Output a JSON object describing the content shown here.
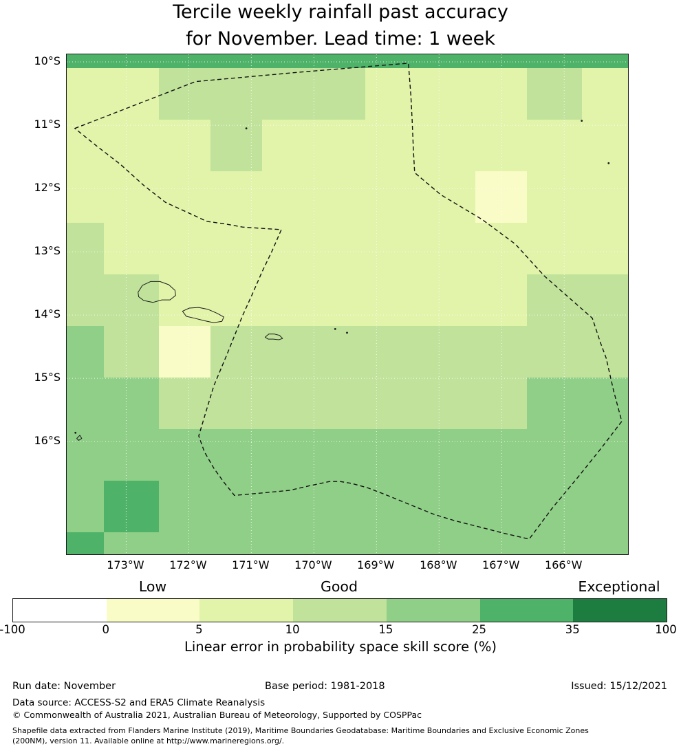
{
  "title": {
    "line1": "Tercile weekly rainfall past accuracy",
    "line2": "for November. Lead time: 1 week"
  },
  "axes": {
    "lat_ticks": [
      {
        "label": "10°S",
        "value": -10
      },
      {
        "label": "11°S",
        "value": -11
      },
      {
        "label": "12°S",
        "value": -12
      },
      {
        "label": "13°S",
        "value": -13
      },
      {
        "label": "14°S",
        "value": -14
      },
      {
        "label": "15°S",
        "value": -15
      },
      {
        "label": "16°S",
        "value": -16
      }
    ],
    "lon_ticks": [
      {
        "label": "173°W",
        "value": -173
      },
      {
        "label": "172°W",
        "value": -172
      },
      {
        "label": "171°W",
        "value": -171
      },
      {
        "label": "170°W",
        "value": -170
      },
      {
        "label": "169°W",
        "value": -169
      },
      {
        "label": "168°W",
        "value": -168
      },
      {
        "label": "167°W",
        "value": -167
      },
      {
        "label": "166°W",
        "value": -166
      }
    ]
  },
  "chart_data": {
    "type": "heatmap",
    "title": "Tercile weekly rainfall past accuracy for November. Lead time: 1 week",
    "value_label": "Linear error in probability space skill score (%)",
    "units": "%",
    "lon_range": [
      -173.95,
      -164.98
    ],
    "lat_range": [
      -9.88,
      -17.78
    ],
    "lon_edges": [
      -173.95,
      -173.36,
      -172.48,
      -171.65,
      -170.83,
      -170.0,
      -169.18,
      -168.3,
      -167.42,
      -166.6,
      -165.72,
      -164.98
    ],
    "lat_edges": [
      -9.88,
      -10.1,
      -10.91,
      -11.73,
      -12.54,
      -13.36,
      -14.17,
      -14.99,
      -15.8,
      -16.62,
      -17.43,
      -17.78
    ],
    "values": [
      [
        30,
        30,
        30,
        30,
        30,
        30,
        30,
        30,
        30,
        30,
        30
      ],
      [
        7.5,
        7.5,
        12.5,
        12.5,
        12.5,
        12.5,
        7.5,
        7.5,
        7.5,
        12.5,
        7.5
      ],
      [
        7.5,
        7.5,
        7.5,
        12.5,
        7.5,
        7.5,
        7.5,
        7.5,
        7.5,
        7.5,
        7.5
      ],
      [
        7.5,
        7.5,
        7.5,
        7.5,
        7.5,
        7.5,
        7.5,
        7.5,
        2.5,
        7.5,
        7.5
      ],
      [
        12.5,
        7.5,
        7.5,
        7.5,
        7.5,
        7.5,
        7.5,
        7.5,
        7.5,
        7.5,
        7.5
      ],
      [
        12.5,
        12.5,
        7.5,
        7.5,
        7.5,
        7.5,
        7.5,
        7.5,
        7.5,
        12.5,
        12.5
      ],
      [
        20,
        12.5,
        2.5,
        12.5,
        12.5,
        12.5,
        12.5,
        12.5,
        12.5,
        12.5,
        12.5
      ],
      [
        20,
        20,
        12.5,
        12.5,
        12.5,
        12.5,
        12.5,
        12.5,
        12.5,
        20,
        20
      ],
      [
        20,
        20,
        20,
        20,
        20,
        20,
        20,
        20,
        20,
        20,
        20
      ],
      [
        20,
        30,
        20,
        20,
        20,
        20,
        20,
        20,
        20,
        20,
        20
      ],
      [
        30,
        20,
        20,
        20,
        20,
        20,
        20,
        20,
        20,
        20,
        20
      ]
    ],
    "colorscale": {
      "thresholds": [
        -100,
        0,
        5,
        10,
        15,
        25,
        35,
        100
      ],
      "colors": [
        "#ffffff",
        "#f9fcc6",
        "#e2f3aa",
        "#c0e29a",
        "#90cf88",
        "#4fb269",
        "#1d7c3f"
      ]
    }
  },
  "colorbar": {
    "labels": {
      "low": "Low",
      "good": "Good",
      "exceptional": "Exceptional"
    },
    "ticks": [
      "-100",
      "0",
      "5",
      "10",
      "15",
      "25",
      "35",
      "100"
    ],
    "segments": [
      "#ffffff",
      "#f9fcc6",
      "#e2f3aa",
      "#c0e29a",
      "#90cf88",
      "#4fb269",
      "#1d7c3f"
    ],
    "caption": "Linear error in probability space skill score (%)"
  },
  "map": {
    "eez_boundary": [
      [
        -173.82,
        -11.05
      ],
      [
        -171.89,
        -10.31
      ],
      [
        -170.21,
        -10.16
      ],
      [
        -168.49,
        -10.02
      ],
      [
        -168.45,
        -10.53
      ],
      [
        -168.43,
        -10.93
      ],
      [
        -168.41,
        -11.4
      ],
      [
        -168.39,
        -11.75
      ],
      [
        -167.97,
        -12.1
      ],
      [
        -167.31,
        -12.49
      ],
      [
        -166.78,
        -12.88
      ],
      [
        -166.32,
        -13.38
      ],
      [
        -165.55,
        -14.05
      ],
      [
        -165.42,
        -14.44
      ],
      [
        -165.33,
        -14.68
      ],
      [
        -165.21,
        -15.2
      ],
      [
        -165.08,
        -15.68
      ],
      [
        -165.43,
        -16.13
      ],
      [
        -165.77,
        -16.55
      ],
      [
        -166.19,
        -17.05
      ],
      [
        -166.56,
        -17.54
      ],
      [
        -166.96,
        -17.45
      ],
      [
        -167.31,
        -17.36
      ],
      [
        -167.75,
        -17.25
      ],
      [
        -168.08,
        -17.15
      ],
      [
        -168.48,
        -16.99
      ],
      [
        -168.85,
        -16.84
      ],
      [
        -169.14,
        -16.73
      ],
      [
        -169.4,
        -16.66
      ],
      [
        -169.58,
        -16.63
      ],
      [
        -169.75,
        -16.63
      ],
      [
        -170.08,
        -16.7
      ],
      [
        -170.39,
        -16.77
      ],
      [
        -170.81,
        -16.81
      ],
      [
        -171.27,
        -16.85
      ],
      [
        -171.44,
        -16.64
      ],
      [
        -171.6,
        -16.42
      ],
      [
        -171.75,
        -16.16
      ],
      [
        -171.84,
        -15.91
      ],
      [
        -171.72,
        -15.51
      ],
      [
        -171.6,
        -15.12
      ],
      [
        -171.38,
        -14.6
      ],
      [
        -171.14,
        -14.01
      ],
      [
        -170.98,
        -13.66
      ],
      [
        -170.83,
        -13.32
      ],
      [
        -170.67,
        -12.99
      ],
      [
        -170.52,
        -12.65
      ],
      [
        -170.83,
        -12.63
      ],
      [
        -171.14,
        -12.61
      ],
      [
        -171.42,
        -12.56
      ],
      [
        -171.71,
        -12.52
      ],
      [
        -172.04,
        -12.37
      ],
      [
        -172.37,
        -12.22
      ],
      [
        -172.72,
        -11.95
      ],
      [
        -173.09,
        -11.62
      ],
      [
        -173.47,
        -11.33
      ],
      [
        -173.82,
        -11.05
      ]
    ],
    "islands": [
      {
        "name": "savaii",
        "type": "outline",
        "points": [
          [
            -172.81,
            -13.64
          ],
          [
            -172.74,
            -13.53
          ],
          [
            -172.61,
            -13.47
          ],
          [
            -172.46,
            -13.47
          ],
          [
            -172.32,
            -13.52
          ],
          [
            -172.22,
            -13.61
          ],
          [
            -172.21,
            -13.69
          ],
          [
            -172.3,
            -13.76
          ],
          [
            -172.43,
            -13.76
          ],
          [
            -172.57,
            -13.8
          ],
          [
            -172.72,
            -13.77
          ],
          [
            -172.8,
            -13.71
          ]
        ]
      },
      {
        "name": "upolu",
        "type": "outline",
        "points": [
          [
            -172.1,
            -13.94
          ],
          [
            -171.99,
            -13.89
          ],
          [
            -171.84,
            -13.88
          ],
          [
            -171.69,
            -13.91
          ],
          [
            -171.55,
            -13.97
          ],
          [
            -171.44,
            -14.03
          ],
          [
            -171.47,
            -14.1
          ],
          [
            -171.6,
            -14.12
          ],
          [
            -171.75,
            -14.09
          ],
          [
            -171.91,
            -14.05
          ],
          [
            -172.04,
            -14.02
          ]
        ]
      },
      {
        "name": "tutuila",
        "type": "outline",
        "points": [
          [
            -170.78,
            -14.35
          ],
          [
            -170.72,
            -14.3
          ],
          [
            -170.63,
            -14.3
          ],
          [
            -170.55,
            -14.32
          ],
          [
            -170.5,
            -14.37
          ],
          [
            -170.56,
            -14.39
          ],
          [
            -170.65,
            -14.38
          ],
          [
            -170.73,
            -14.38
          ]
        ]
      },
      {
        "name": "ofu-olosega",
        "type": "dot",
        "lon": -169.66,
        "lat": -14.22
      },
      {
        "name": "tau",
        "type": "dot",
        "lon": -169.47,
        "lat": -14.28
      },
      {
        "name": "swains",
        "type": "dot",
        "lon": -171.08,
        "lat": -11.05
      },
      {
        "name": "niuatoputapu",
        "type": "outline",
        "points": [
          [
            -173.79,
            -15.95
          ],
          [
            -173.74,
            -15.9
          ],
          [
            -173.71,
            -15.95
          ],
          [
            -173.76,
            -15.98
          ]
        ]
      },
      {
        "name": "tafahi",
        "type": "dot",
        "lon": -173.81,
        "lat": -15.86
      },
      {
        "name": "islet-northeast",
        "type": "dot",
        "lon": -165.72,
        "lat": -10.93
      },
      {
        "name": "islet-east",
        "type": "dot",
        "lon": -165.29,
        "lat": -11.6
      }
    ]
  },
  "footer": {
    "run_date": "Run date: November",
    "base_period": "Base period: 1981-2018",
    "issued": "Issued: 15/12/2021",
    "data_source": "Data source: ACCESS-S2 and ERA5 Climate Reanalysis",
    "copyright": "© Commonwealth of Australia 2021, Australian Bureau of Meteorology, Supported by COSPPac",
    "shapefile_line1": "Shapefile data extracted from Flanders Marine Institute (2019), Maritime Boundaries Geodatabase: Maritime Boundaries and Exclusive Economic Zones",
    "shapefile_line2": "(200NM), version 11. Available online at http://www.marineregions.org/."
  }
}
